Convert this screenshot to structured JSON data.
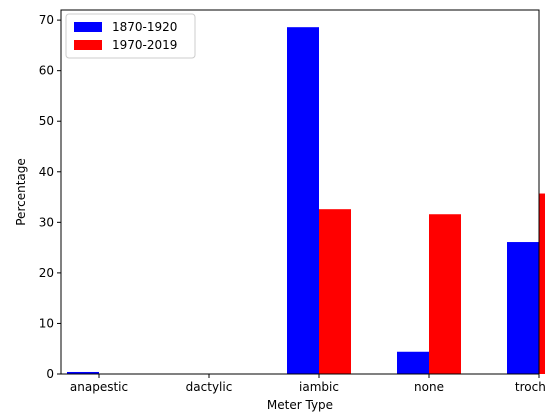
{
  "chart_data": {
    "type": "bar",
    "title": "",
    "xlabel": "Meter Type",
    "ylabel": "Percentage",
    "ylim": [
      0,
      72
    ],
    "yticks": [
      0,
      10,
      20,
      30,
      40,
      50,
      60,
      70
    ],
    "categories": [
      "anapestic",
      "dactylic",
      "iambic",
      "none",
      "trochaic"
    ],
    "series": [
      {
        "name": "1870-1920",
        "color": "#0000ff",
        "values": [
          0.4,
          0.0,
          68.6,
          4.4,
          26.1
        ]
      },
      {
        "name": "1970-2019",
        "color": "#ff0000",
        "values": [
          0.0,
          0.0,
          32.6,
          31.6,
          35.7
        ]
      }
    ],
    "legend_position": "top-left",
    "grid": false
  }
}
